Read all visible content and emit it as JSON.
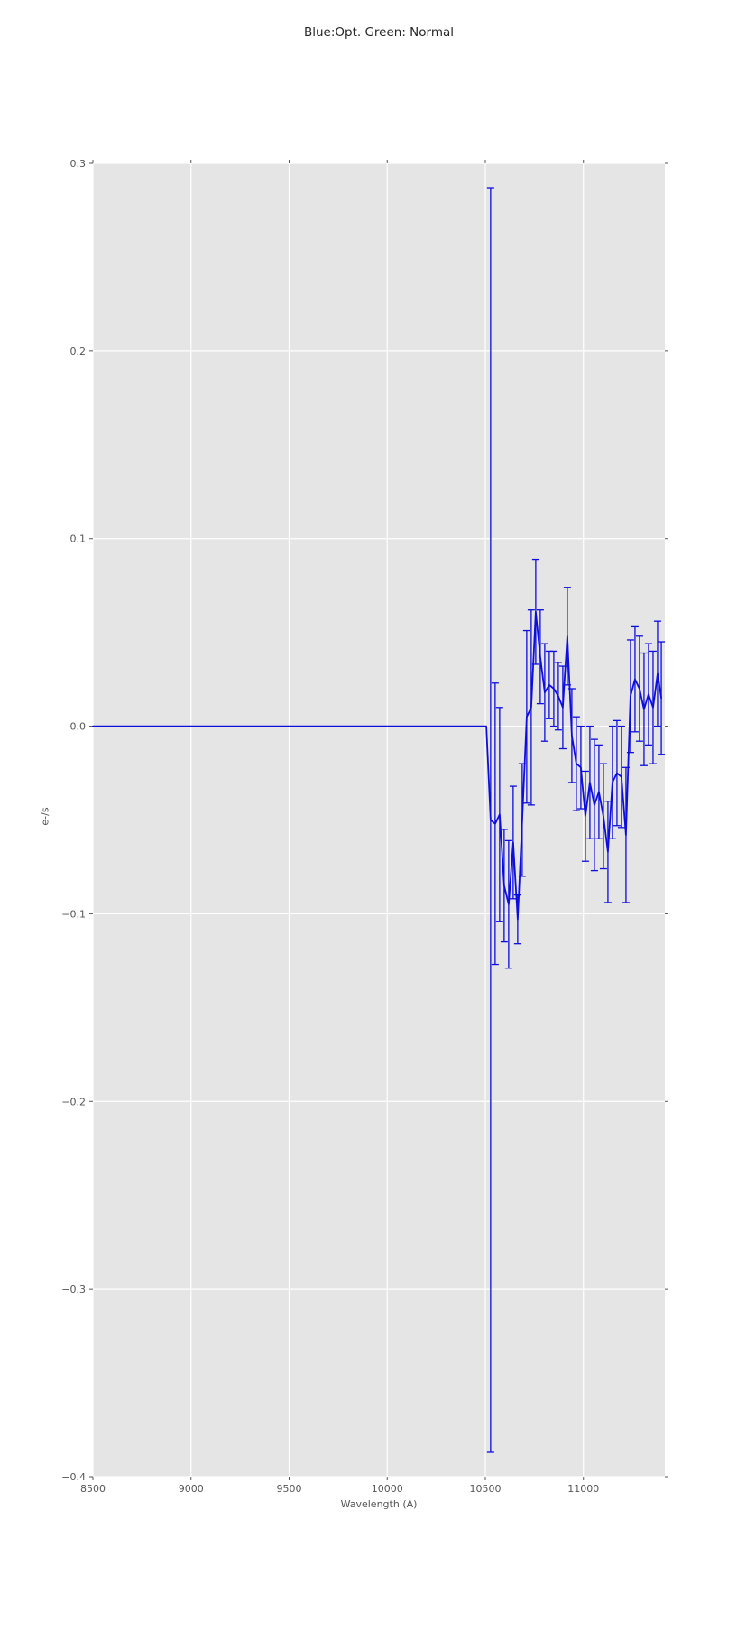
{
  "chart_data": {
    "type": "line",
    "title": "Blue:Opt. Green: Normal",
    "xlabel": "Wavelength (A)",
    "ylabel": "e-/s",
    "xlim": [
      8500,
      11415
    ],
    "ylim": [
      -0.4,
      0.3
    ],
    "grid": true,
    "legend_position": "none",
    "x_ticks": [
      8500,
      9000,
      9500,
      10000,
      10500,
      11000
    ],
    "x_ticklabels": [
      "8500",
      "9000",
      "9500",
      "10000",
      "10500",
      "11000"
    ],
    "y_ticks": [
      0.3,
      0.2,
      0.1,
      0.0,
      -0.1,
      -0.2,
      -0.3,
      -0.4
    ],
    "y_ticklabels": [
      "0.3",
      "0.2",
      "0.1",
      "0.0",
      "−0.1",
      "−0.2",
      "−0.3",
      "−0.4"
    ],
    "style": {
      "plot_bg": "#e5e5e5",
      "grid_color": "#ffffff",
      "line_color": "#0d0ddd",
      "tick_color": "#555555",
      "label_color": "#555555",
      "title_color": "#262626"
    },
    "series": [
      {
        "name": "spectrum-with-errorbars",
        "x": [
          8500,
          10505,
          10527,
          10550,
          10573,
          10596,
          10619,
          10642,
          10665,
          10688,
          10711,
          10734,
          10757,
          10780,
          10803,
          10826,
          10849,
          10872,
          10895,
          10918,
          10941,
          10964,
          10987,
          11010,
          11033,
          11056,
          11079,
          11102,
          11125,
          11148,
          11171,
          11194,
          11217,
          11240,
          11263,
          11286,
          11309,
          11332,
          11355,
          11378,
          11397
        ],
        "y": [
          0.0,
          0.0,
          -0.05,
          -0.052,
          -0.047,
          -0.085,
          -0.095,
          -0.062,
          -0.103,
          -0.05,
          0.005,
          0.01,
          0.061,
          0.037,
          0.018,
          0.022,
          0.02,
          0.016,
          0.01,
          0.048,
          -0.005,
          -0.02,
          -0.022,
          -0.048,
          -0.03,
          -0.042,
          -0.035,
          -0.048,
          -0.067,
          -0.03,
          -0.025,
          -0.027,
          -0.058,
          0.016,
          0.025,
          0.02,
          0.009,
          0.017,
          0.01,
          0.028,
          0.015
        ],
        "yerr": [
          0,
          0,
          0.337,
          0.075,
          0.057,
          0.03,
          0.034,
          0.03,
          0.013,
          0.03,
          0.046,
          0.052,
          0.028,
          0.025,
          0.026,
          0.018,
          0.02,
          0.018,
          0.022,
          0.026,
          0.025,
          0.025,
          0.022,
          0.024,
          0.03,
          0.035,
          0.025,
          0.028,
          0.027,
          0.03,
          0.028,
          0.027,
          0.036,
          0.03,
          0.028,
          0.028,
          0.03,
          0.027,
          0.03,
          0.028,
          0.03
        ]
      }
    ]
  }
}
